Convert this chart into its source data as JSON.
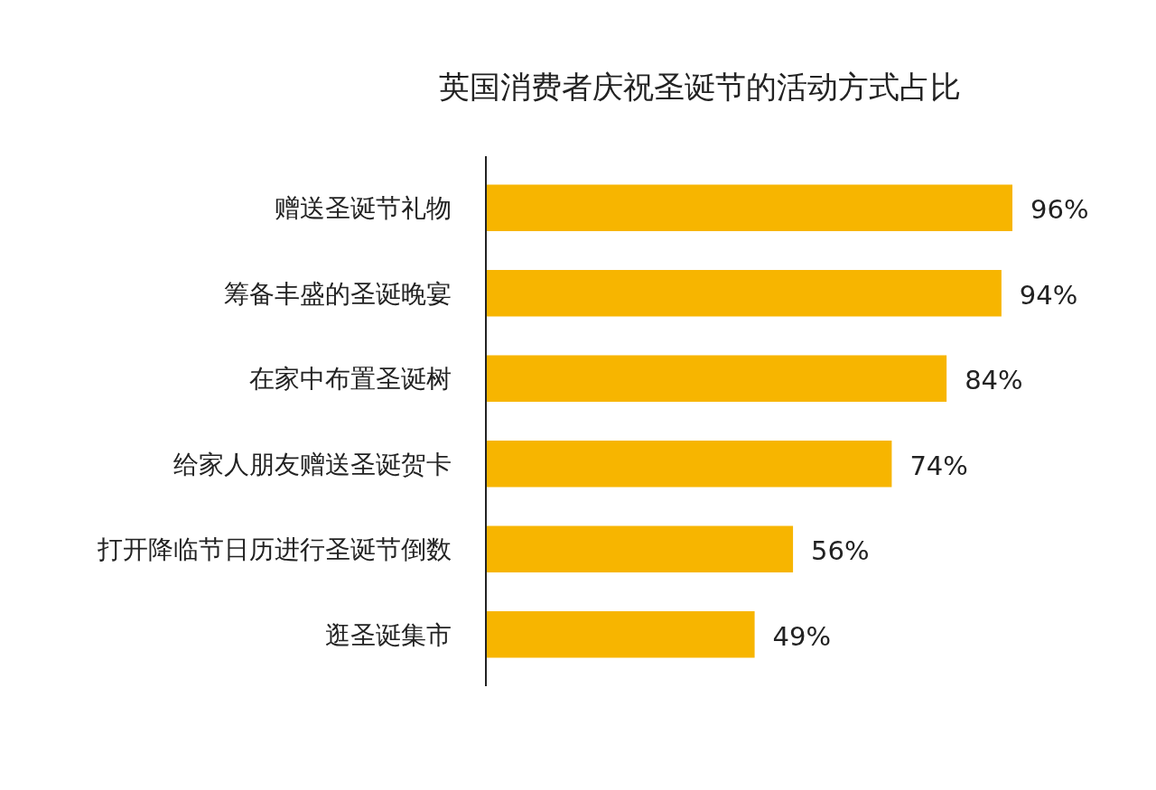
{
  "chart_data": {
    "type": "bar",
    "orientation": "horizontal",
    "title": "英国消费者庆祝圣诞节的活动方式占比",
    "categories": [
      "赠送圣诞节礼物",
      "筹备丰盛的圣诞晚宴",
      "在家中布置圣诞树",
      "给家人朋友赠送圣诞贺卡",
      "打开降临节日历进行圣诞节倒数",
      "逛圣诞集市"
    ],
    "values": [
      96,
      94,
      84,
      74,
      56,
      49
    ],
    "value_labels": [
      "96%",
      "94%",
      "84%",
      "74%",
      "56%",
      "49%"
    ],
    "color": "#f7b500"
  }
}
